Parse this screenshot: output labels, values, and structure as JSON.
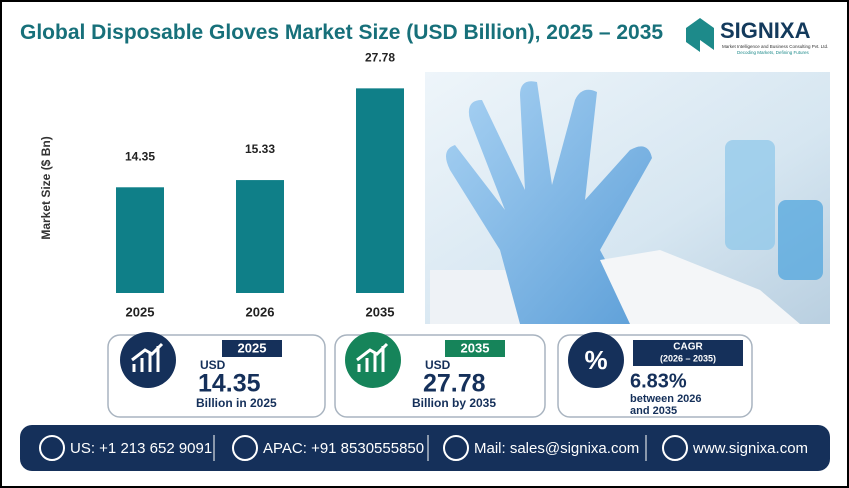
{
  "chart_data": {
    "type": "bar",
    "title": "Global Disposable Gloves Market Size (USD Billion), 2025 – 2035",
    "y_label": "Market Size ($ Bn)",
    "categories": [
      "2025",
      "2026",
      "2035"
    ],
    "values": [
      14.35,
      15.33,
      27.78
    ],
    "color": "#0f7f88",
    "ylim": [
      0,
      30
    ]
  },
  "logo": {
    "name": "SIGNIXA",
    "tagline": "Market Intelligence and Business Consulting Pvt. Ltd.",
    "motto": "Decoding Markets, Defining Futures"
  },
  "cards": [
    {
      "badge": "2025",
      "unit": "USD",
      "value": "14.35",
      "caption": "Billion in 2025"
    },
    {
      "badge": "2035",
      "unit": "USD",
      "value": "27.78",
      "caption": "Billion by 2035"
    },
    {
      "badge": "CAGR",
      "sub": "(2026 – 2035)",
      "icon": "%",
      "value": "6.83%",
      "caption1": "between 2026",
      "caption2": "and 2035"
    }
  ],
  "footer": {
    "us": "US: +1 213 652 9091",
    "apac": "APAC: +91 8530555850",
    "mail": "Mail: sales@signixa.com",
    "web": "www.signixa.com"
  }
}
